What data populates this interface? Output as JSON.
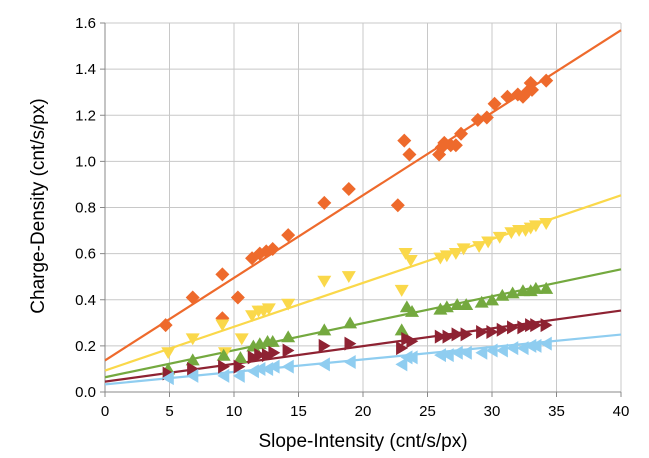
{
  "chart_data": {
    "type": "scatter",
    "title": "",
    "xlabel": "Slope-Intensity (cnt/s/px)",
    "ylabel": "Charge-Density  (cnt/s/px)",
    "xlim": [
      0,
      40
    ],
    "ylim": [
      0,
      1.6
    ],
    "xticks": [
      0,
      5,
      10,
      15,
      20,
      25,
      30,
      35,
      40
    ],
    "yticks": [
      0.0,
      0.2,
      0.4,
      0.6,
      0.8,
      1.0,
      1.2,
      1.4,
      1.6
    ],
    "xtick_labels": [
      "0",
      "5",
      "10",
      "15",
      "20",
      "25",
      "30",
      "35",
      "40"
    ],
    "ytick_labels": [
      "0.0",
      "0.2",
      "0.4",
      "0.6",
      "0.8",
      "1.0",
      "1.2",
      "1.4",
      "1.6"
    ],
    "grid": true,
    "legend": "none",
    "series": [
      {
        "marker": "diamond",
        "color": "#ee6a2c",
        "points": [
          [
            4.7,
            0.29
          ],
          [
            6.8,
            0.41
          ],
          [
            9.1,
            0.51
          ],
          [
            9.1,
            0.32
          ],
          [
            10.3,
            0.41
          ],
          [
            11.4,
            0.58
          ],
          [
            12.0,
            0.6
          ],
          [
            12.5,
            0.61
          ],
          [
            13.0,
            0.62
          ],
          [
            14.2,
            0.68
          ],
          [
            17.0,
            0.82
          ],
          [
            18.9,
            0.88
          ],
          [
            22.7,
            0.81
          ],
          [
            23.2,
            1.09
          ],
          [
            23.6,
            1.03
          ],
          [
            25.9,
            1.03
          ],
          [
            26.1,
            1.06
          ],
          [
            26.3,
            1.08
          ],
          [
            26.8,
            1.07
          ],
          [
            27.2,
            1.07
          ],
          [
            27.6,
            1.12
          ],
          [
            28.9,
            1.18
          ],
          [
            29.6,
            1.19
          ],
          [
            30.2,
            1.25
          ],
          [
            31.2,
            1.28
          ],
          [
            32.0,
            1.29
          ],
          [
            32.4,
            1.28
          ],
          [
            32.7,
            1.3
          ],
          [
            33.0,
            1.34
          ],
          [
            33.1,
            1.31
          ],
          [
            34.2,
            1.35
          ]
        ],
        "trend": [
          0.137,
          0.0358
        ]
      },
      {
        "marker": "triangle-down",
        "color": "#fad84a",
        "points": [
          [
            4.9,
            0.17
          ],
          [
            6.8,
            0.23
          ],
          [
            9.1,
            0.29
          ],
          [
            9.3,
            0.17
          ],
          [
            10.6,
            0.23
          ],
          [
            11.4,
            0.33
          ],
          [
            11.9,
            0.35
          ],
          [
            12.3,
            0.35
          ],
          [
            12.7,
            0.36
          ],
          [
            14.2,
            0.38
          ],
          [
            17.0,
            0.48
          ],
          [
            18.9,
            0.5
          ],
          [
            23.0,
            0.44
          ],
          [
            23.3,
            0.6
          ],
          [
            23.7,
            0.57
          ],
          [
            26.0,
            0.58
          ],
          [
            26.5,
            0.59
          ],
          [
            27.2,
            0.6
          ],
          [
            27.8,
            0.62
          ],
          [
            29.0,
            0.63
          ],
          [
            29.7,
            0.65
          ],
          [
            30.6,
            0.67
          ],
          [
            31.5,
            0.69
          ],
          [
            32.1,
            0.7
          ],
          [
            32.6,
            0.7
          ],
          [
            33.0,
            0.71
          ],
          [
            33.4,
            0.72
          ],
          [
            34.2,
            0.73
          ]
        ],
        "trend": [
          0.093,
          0.019
        ]
      },
      {
        "marker": "triangle-up",
        "color": "#74a93f",
        "points": [
          [
            4.9,
            0.1
          ],
          [
            6.8,
            0.14
          ],
          [
            9.2,
            0.16
          ],
          [
            10.5,
            0.15
          ],
          [
            11.5,
            0.2
          ],
          [
            12.0,
            0.21
          ],
          [
            12.6,
            0.22
          ],
          [
            13.0,
            0.22
          ],
          [
            14.2,
            0.24
          ],
          [
            17.0,
            0.27
          ],
          [
            19.0,
            0.3
          ],
          [
            23.0,
            0.27
          ],
          [
            23.4,
            0.37
          ],
          [
            23.8,
            0.35
          ],
          [
            26.0,
            0.36
          ],
          [
            26.5,
            0.37
          ],
          [
            27.3,
            0.38
          ],
          [
            28.0,
            0.38
          ],
          [
            29.2,
            0.39
          ],
          [
            30.0,
            0.4
          ],
          [
            30.8,
            0.42
          ],
          [
            31.6,
            0.43
          ],
          [
            32.4,
            0.44
          ],
          [
            33.0,
            0.44
          ],
          [
            33.4,
            0.45
          ],
          [
            34.2,
            0.45
          ]
        ],
        "trend": [
          0.064,
          0.0117
        ]
      },
      {
        "marker": "triangle-right",
        "color": "#8e2232",
        "points": [
          [
            4.9,
            0.08
          ],
          [
            6.8,
            0.1
          ],
          [
            9.2,
            0.11
          ],
          [
            10.4,
            0.11
          ],
          [
            11.5,
            0.15
          ],
          [
            12.0,
            0.16
          ],
          [
            12.6,
            0.16
          ],
          [
            13.1,
            0.17
          ],
          [
            14.2,
            0.18
          ],
          [
            17.0,
            0.2
          ],
          [
            19.0,
            0.21
          ],
          [
            23.0,
            0.19
          ],
          [
            23.4,
            0.23
          ],
          [
            23.8,
            0.22
          ],
          [
            26.0,
            0.24
          ],
          [
            26.6,
            0.24
          ],
          [
            27.3,
            0.25
          ],
          [
            28.0,
            0.25
          ],
          [
            29.2,
            0.26
          ],
          [
            30.0,
            0.26
          ],
          [
            30.8,
            0.27
          ],
          [
            31.6,
            0.28
          ],
          [
            32.4,
            0.28
          ],
          [
            33.0,
            0.29
          ],
          [
            33.4,
            0.29
          ],
          [
            34.2,
            0.29
          ]
        ],
        "trend": [
          0.045,
          0.0077
        ]
      },
      {
        "marker": "triangle-left",
        "color": "#8fcdf0",
        "points": [
          [
            4.9,
            0.06
          ],
          [
            6.8,
            0.07
          ],
          [
            9.2,
            0.07
          ],
          [
            10.4,
            0.07
          ],
          [
            11.5,
            0.09
          ],
          [
            12.0,
            0.1
          ],
          [
            12.6,
            0.1
          ],
          [
            13.1,
            0.11
          ],
          [
            14.2,
            0.11
          ],
          [
            17.0,
            0.12
          ],
          [
            19.0,
            0.13
          ],
          [
            23.0,
            0.12
          ],
          [
            23.4,
            0.15
          ],
          [
            23.8,
            0.15
          ],
          [
            26.0,
            0.16
          ],
          [
            26.6,
            0.16
          ],
          [
            27.3,
            0.17
          ],
          [
            28.0,
            0.17
          ],
          [
            29.2,
            0.17
          ],
          [
            30.0,
            0.18
          ],
          [
            30.8,
            0.18
          ],
          [
            31.6,
            0.19
          ],
          [
            32.4,
            0.19
          ],
          [
            33.0,
            0.2
          ],
          [
            33.4,
            0.2
          ],
          [
            34.2,
            0.21
          ]
        ],
        "trend": [
          0.033,
          0.0054
        ]
      }
    ]
  }
}
